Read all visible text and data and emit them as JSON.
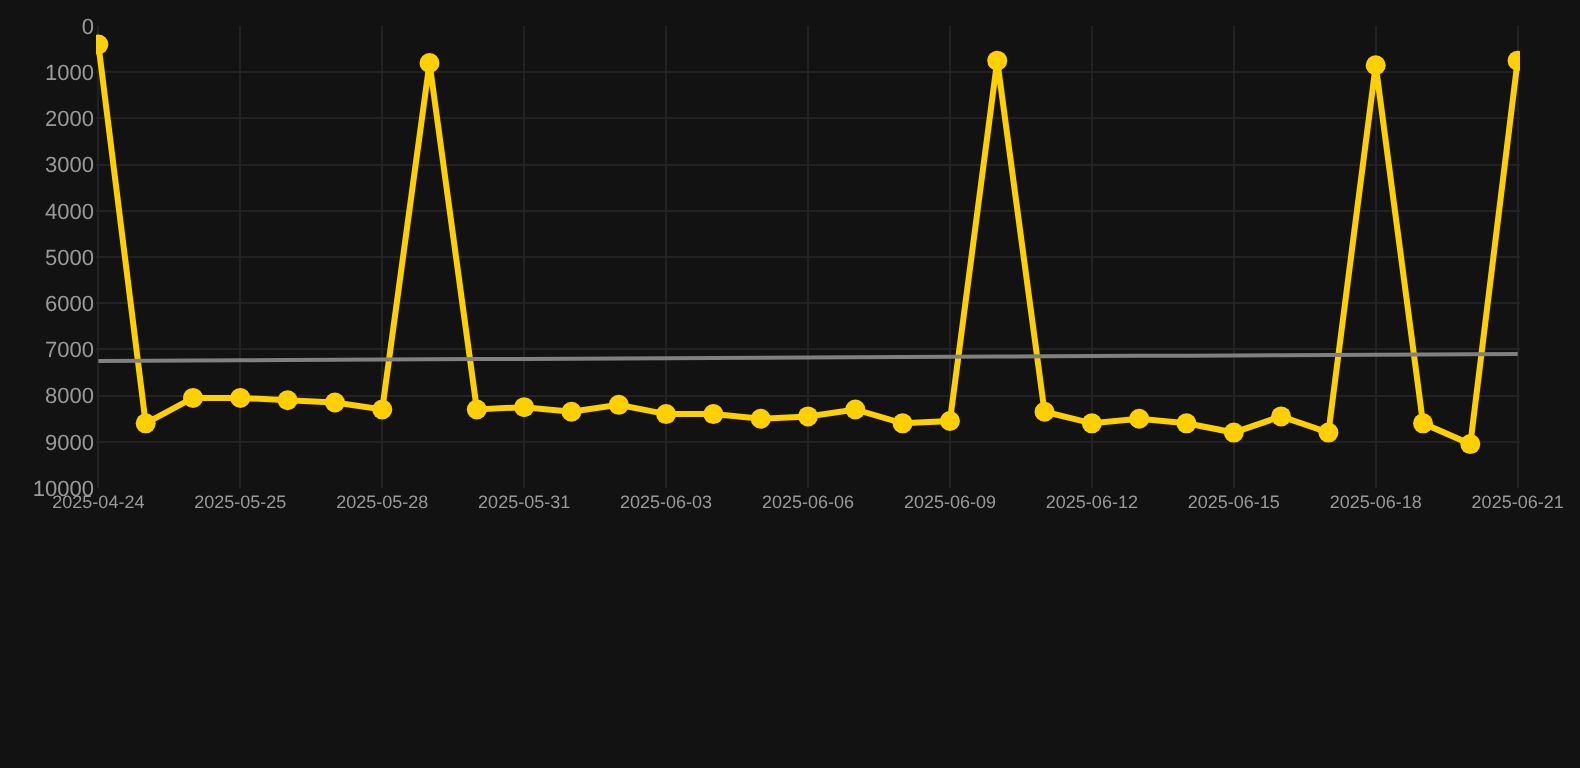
{
  "chart_data": {
    "type": "line",
    "categories": [
      "2025-04-24",
      null,
      null,
      "2025-05-25",
      null,
      null,
      "2025-05-28",
      null,
      null,
      "2025-05-31",
      null,
      null,
      "2025-06-03",
      null,
      null,
      "2025-06-06",
      null,
      null,
      "2025-06-09",
      null,
      null,
      "2025-06-12",
      null,
      null,
      "2025-06-15",
      null,
      null,
      "2025-06-18",
      null,
      null,
      "2025-06-21"
    ],
    "series": [
      {
        "color": "#ffd000",
        "marker": "circle",
        "values": [
          400,
          8600,
          8050,
          8050,
          8100,
          8150,
          8300,
          800,
          8300,
          8250,
          8350,
          8200,
          8400,
          8400,
          8500,
          8450,
          8300,
          8600,
          8550,
          750,
          8350,
          8600,
          8500,
          8600,
          8800,
          8450,
          8800,
          850,
          8600,
          9050,
          750
        ]
      },
      {
        "type": "line",
        "color": "#808080",
        "marker": "none",
        "values": [
          7250,
          7245,
          7240,
          7235,
          7230,
          7225,
          7220,
          7215,
          7210,
          7205,
          7200,
          7195,
          7190,
          7185,
          7180,
          7175,
          7170,
          7165,
          7160,
          7155,
          7150,
          7145,
          7140,
          7135,
          7130,
          7125,
          7120,
          7115,
          7110,
          7105,
          7100
        ]
      }
    ],
    "ylim": [
      10000,
      0
    ],
    "yticks": [
      0,
      1000,
      2000,
      3000,
      4000,
      5000,
      6000,
      7000,
      8000,
      9000,
      10000
    ],
    "grid": true
  }
}
